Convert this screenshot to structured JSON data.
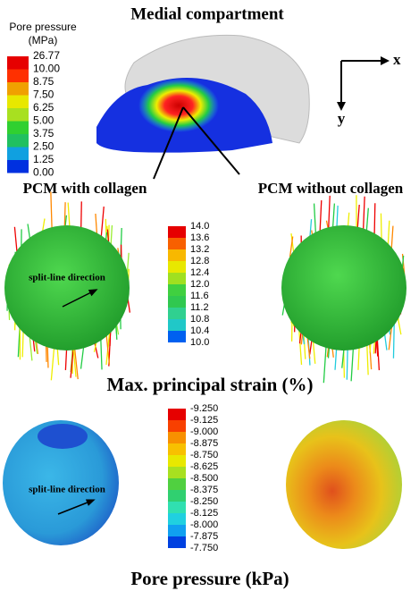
{
  "header": {
    "title": "Medial compartment"
  },
  "legend_top": {
    "title": "Pore pressure",
    "unit": "(MPa)",
    "labels": [
      "26.77",
      "10.00",
      "8.75",
      "7.50",
      "6.25",
      "5.00",
      "3.75",
      "2.50",
      "1.25",
      "0.00"
    ]
  },
  "axes": {
    "x": "x",
    "y": "y"
  },
  "labels": {
    "left": "PCM with collagen",
    "right": "PCM without collagen"
  },
  "strain": {
    "legend_labels": [
      "14.0",
      "13.6",
      "13.2",
      "12.8",
      "12.4",
      "12.0",
      "11.6",
      "11.2",
      "10.8",
      "10.4",
      "10.0"
    ],
    "annotation": "split-line direction",
    "caption": "Max. principal strain (%)"
  },
  "pressure": {
    "legend_labels": [
      "-9.250",
      "-9.125",
      "-9.000",
      "-8.875",
      "-8.750",
      "-8.625",
      "-8.500",
      "-8.375",
      "-8.250",
      "-8.125",
      "-8.000",
      "-7.875",
      "-7.750"
    ],
    "annotation": "split-line direction",
    "caption": "Pore pressure (kPa)"
  }
}
